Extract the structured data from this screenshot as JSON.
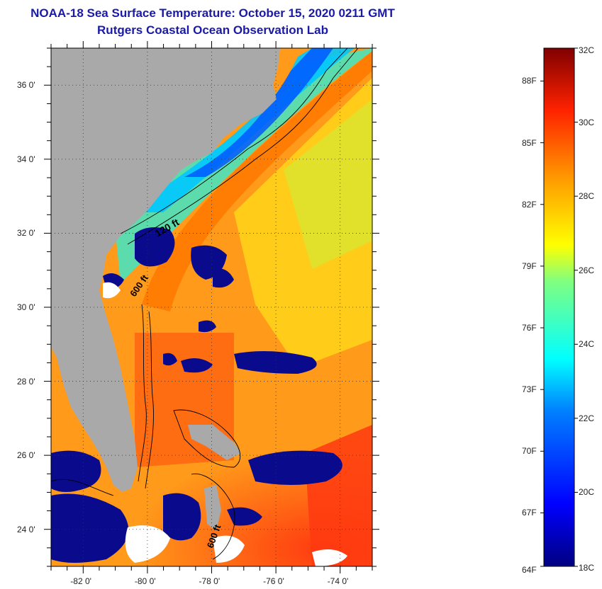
{
  "header": {
    "title": "NOAA-18 Sea Surface Temperature:  October 15, 2020 0211 GMT",
    "subtitle": "Rutgers Coastal Ocean Observation Lab"
  },
  "map": {
    "lat_range": [
      23,
      37
    ],
    "lon_range": [
      -83,
      -73
    ],
    "lat_ticks": [
      {
        "value": 24,
        "label": "24 0'"
      },
      {
        "value": 26,
        "label": "26 0'"
      },
      {
        "value": 28,
        "label": "28 0'"
      },
      {
        "value": 30,
        "label": "30 0'"
      },
      {
        "value": 32,
        "label": "32 0'"
      },
      {
        "value": 34,
        "label": "34 0'"
      },
      {
        "value": 36,
        "label": "36 0'"
      }
    ],
    "lon_ticks": [
      {
        "value": -82,
        "label": "-82 0'"
      },
      {
        "value": -80,
        "label": "-80 0'"
      },
      {
        "value": -78,
        "label": "-78 0'"
      },
      {
        "value": -76,
        "label": "-76 0'"
      },
      {
        "value": -74,
        "label": "-74 0'"
      }
    ],
    "contour_labels": [
      "120 ft",
      "600 ft",
      "600 ft"
    ],
    "land_color": "#a9a9a9",
    "cloud_color": "#0a0a8c"
  },
  "colorbar": {
    "range_c": [
      18,
      32
    ],
    "celsius_labels": [
      "18C",
      "20C",
      "22C",
      "24C",
      "26C",
      "28C",
      "30C",
      "32C"
    ],
    "fahrenheit_labels": [
      "64F",
      "67F",
      "70F",
      "73F",
      "76F",
      "79F",
      "82F",
      "85F",
      "88F"
    ]
  }
}
